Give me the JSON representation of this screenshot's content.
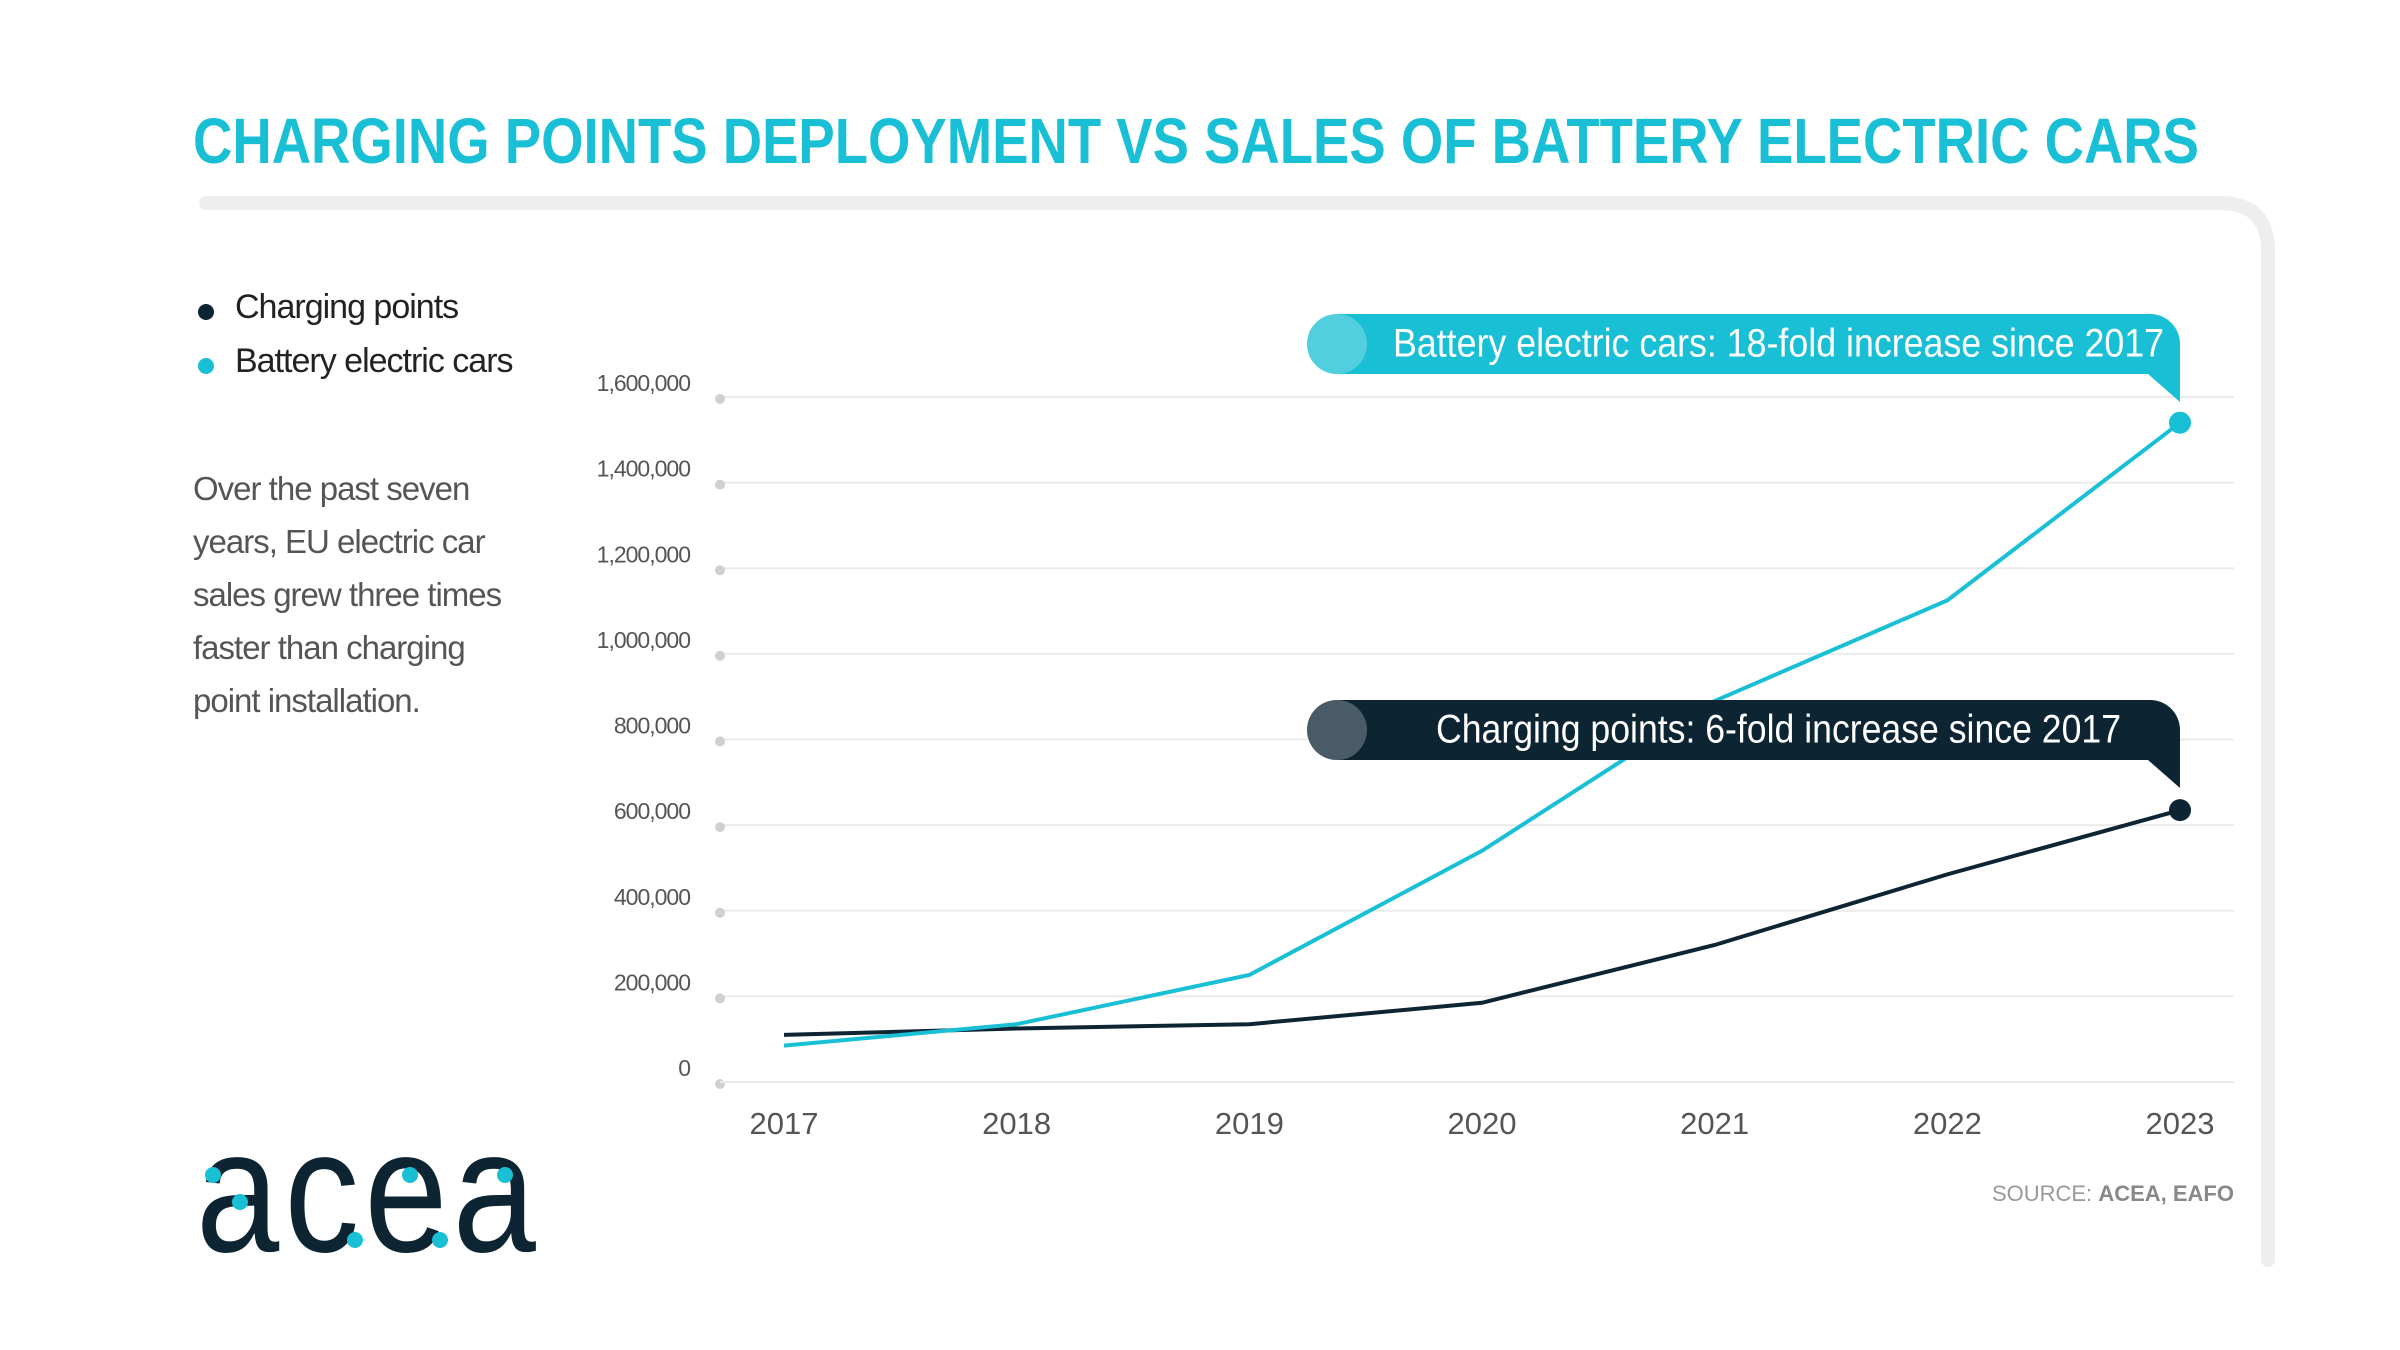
{
  "chart_data": {
    "type": "line",
    "title": "CHARGING POINTS DEPLOYMENT VS SALES OF BATTERY ELECTRIC CARS",
    "description": "Over the past seven years, EU electric car sales grew three times faster than charging point installation.",
    "categories": [
      "2017",
      "2018",
      "2019",
      "2020",
      "2021",
      "2022",
      "2023"
    ],
    "series": [
      {
        "name": "Charging points",
        "color": "#0d2433",
        "values": [
          110000,
          125000,
          135000,
          185000,
          320000,
          485000,
          635000
        ]
      },
      {
        "name": "Battery electric cars",
        "color": "#19bfd5",
        "values": [
          85000,
          135000,
          250000,
          540000,
          890000,
          1125000,
          1540000
        ]
      }
    ],
    "ylim": [
      0,
      1600000
    ],
    "yticks": [
      0,
      {
        "value": 200000,
        "label": "200,000"
      },
      {
        "value": 400000,
        "label": "400,000"
      },
      {
        "value": 600000,
        "label": "600,000"
      },
      {
        "value": 800000,
        "label": "800,000"
      },
      {
        "value": 1000000,
        "label": "1,000,000"
      },
      {
        "value": 1200000,
        "label": "1,200,000"
      },
      {
        "value": 1400000,
        "label": "1,400,000"
      },
      {
        "value": 1600000,
        "label": "1,600,000"
      }
    ],
    "grid": true,
    "annotations": [
      {
        "text": "Battery electric cars: 18-fold increase since 2017",
        "series": 1
      },
      {
        "text": "Charging points: 6-fold increase since 2017",
        "series": 0
      }
    ],
    "source_label": "SOURCE:",
    "source_names": "ACEA, EAFO",
    "logo": "acea"
  }
}
